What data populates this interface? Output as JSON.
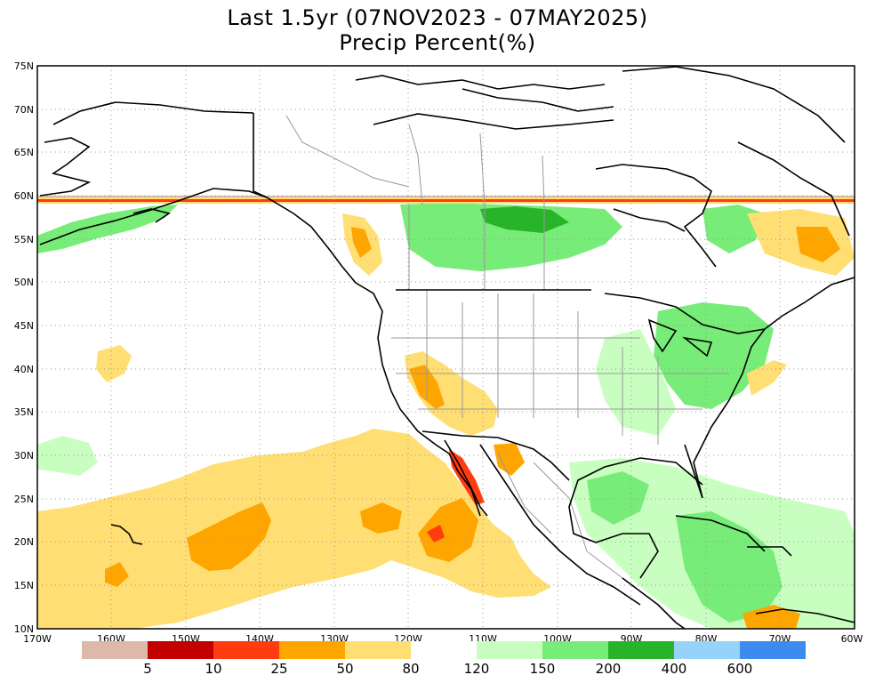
{
  "title": {
    "line1": "Last 1.5yr (07NOV2023 - 07MAY2025)",
    "line2": "Precip Percent(%)"
  },
  "map": {
    "projection": "lat-lon",
    "lon_range": [
      -170,
      -60
    ],
    "lat_range": [
      10,
      75
    ],
    "lat_labels": [
      "75N",
      "70N",
      "65N",
      "60N",
      "55N",
      "50N",
      "45N",
      "40N",
      "35N",
      "30N",
      "25N",
      "20N",
      "15N",
      "10N"
    ],
    "lon_labels": [
      "170W",
      "160W",
      "150W",
      "140W",
      "130W",
      "120W",
      "110W",
      "100W",
      "90W",
      "80W",
      "70W",
      "60W"
    ]
  },
  "colorbar": {
    "labels": [
      "5",
      "10",
      "25",
      "50",
      "80",
      "120",
      "150",
      "200",
      "400",
      "600"
    ],
    "colors": [
      "#dcb9a9",
      "#c20000",
      "#ff3b10",
      "#ffa500",
      "#ffde74",
      "#ffffff",
      "#c8ffc0",
      "#78ec78",
      "#28b428",
      "#96d2fa",
      "#3c8cf0"
    ]
  }
}
